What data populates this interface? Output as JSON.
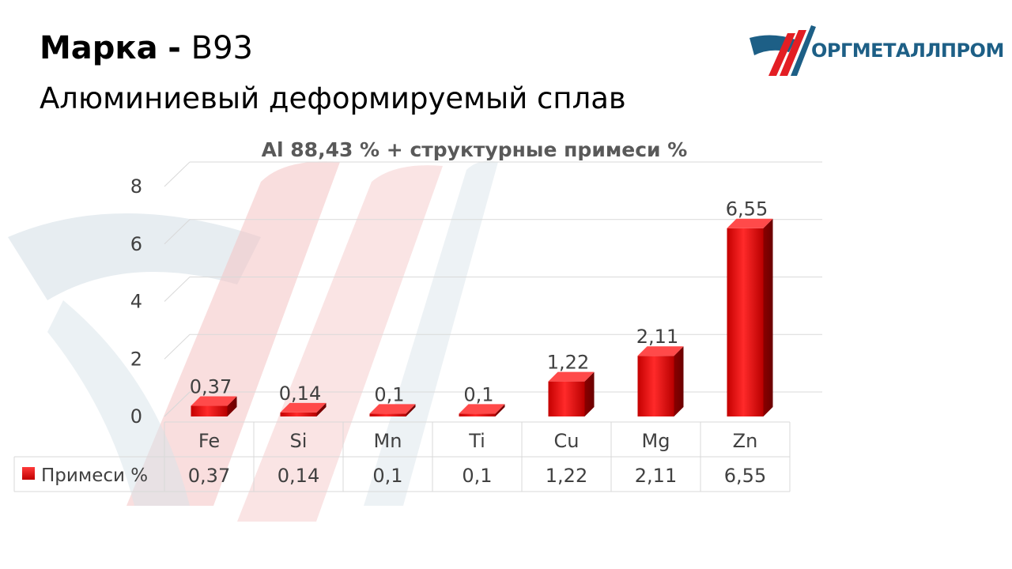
{
  "header": {
    "brand_label": "Марка",
    "separator": "-",
    "grade": "В93",
    "subtitle": "Алюминиевый деформируемый сплав"
  },
  "logo": {
    "text": "ОРГМЕТАЛЛПРОМ",
    "colors": {
      "red": "#e31e24",
      "blue": "#1d5f86"
    }
  },
  "chart_data": {
    "type": "bar",
    "title": "Al 88,43 % + структурные примеси %",
    "categories": [
      "Fe",
      "Si",
      "Mn",
      "Ti",
      "Cu",
      "Mg",
      "Zn"
    ],
    "series": [
      {
        "name": "Примеси %",
        "values": [
          0.37,
          0.14,
          0.1,
          0.1,
          1.22,
          2.11,
          6.55
        ],
        "labels": [
          "0,37",
          "0,14",
          "0,1",
          "0,1",
          "1,22",
          "2,11",
          "6,55"
        ],
        "color": "#e00000"
      }
    ],
    "ylim": [
      0,
      8
    ],
    "yticks": [
      "0",
      "2",
      "4",
      "6",
      "8"
    ],
    "ytick_values": [
      0,
      2,
      4,
      6,
      8
    ],
    "grid": true,
    "legend": "data-table-below"
  }
}
